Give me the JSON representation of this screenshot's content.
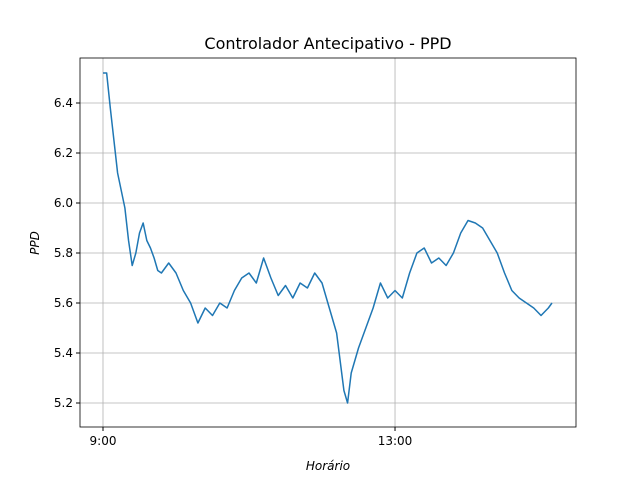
{
  "chart_data": {
    "type": "line",
    "title": "Controlador Antecipativo - PPD",
    "x_label": "Horário",
    "y_label": "PPD",
    "x": [
      9.0,
      9.05,
      9.1,
      9.15,
      9.2,
      9.3,
      9.35,
      9.4,
      9.45,
      9.5,
      9.55,
      9.6,
      9.65,
      9.7,
      9.75,
      9.8,
      9.9,
      10.0,
      10.1,
      10.2,
      10.3,
      10.4,
      10.5,
      10.6,
      10.7,
      10.8,
      10.9,
      11.0,
      11.1,
      11.2,
      11.3,
      11.4,
      11.5,
      11.6,
      11.7,
      11.8,
      11.9,
      12.0,
      12.1,
      12.2,
      12.3,
      12.35,
      12.4,
      12.5,
      12.6,
      12.7,
      12.8,
      12.9,
      13.0,
      13.1,
      13.2,
      13.3,
      13.4,
      13.5,
      13.6,
      13.7,
      13.8,
      13.9,
      14.0,
      14.1,
      14.2,
      14.3,
      14.4,
      14.5,
      14.6,
      14.7,
      14.8,
      14.9,
      15.0,
      15.1,
      15.15
    ],
    "series": [
      {
        "name": "PPD",
        "color": "#1f77b4",
        "values": [
          6.52,
          6.52,
          6.38,
          6.25,
          6.12,
          5.98,
          5.85,
          5.75,
          5.8,
          5.88,
          5.92,
          5.85,
          5.82,
          5.78,
          5.73,
          5.72,
          5.76,
          5.72,
          5.65,
          5.6,
          5.52,
          5.58,
          5.55,
          5.6,
          5.58,
          5.65,
          5.7,
          5.72,
          5.68,
          5.78,
          5.7,
          5.63,
          5.67,
          5.62,
          5.68,
          5.66,
          5.72,
          5.68,
          5.58,
          5.48,
          5.25,
          5.2,
          5.32,
          5.42,
          5.5,
          5.58,
          5.68,
          5.62,
          5.65,
          5.62,
          5.72,
          5.8,
          5.82,
          5.76,
          5.78,
          5.75,
          5.8,
          5.88,
          5.93,
          5.92,
          5.9,
          5.85,
          5.8,
          5.72,
          5.65,
          5.62,
          5.6,
          5.58,
          5.55,
          5.58,
          5.6
        ]
      }
    ],
    "xlim": [
      8.685,
      15.479
    ],
    "xticks": [
      {
        "value": 9,
        "label": "9:00"
      },
      {
        "value": 13,
        "label": "13:00"
      }
    ],
    "ylim": [
      5.104,
      6.58
    ],
    "yticks": [
      {
        "value": 5.2,
        "label": "5.2"
      },
      {
        "value": 5.4,
        "label": "5.4"
      },
      {
        "value": 5.6,
        "label": "5.6"
      },
      {
        "value": 5.8,
        "label": "5.8"
      },
      {
        "value": 6.0,
        "label": "6.0"
      },
      {
        "value": 6.2,
        "label": "6.2"
      },
      {
        "value": 6.4,
        "label": "6.4"
      }
    ],
    "grid": true
  }
}
